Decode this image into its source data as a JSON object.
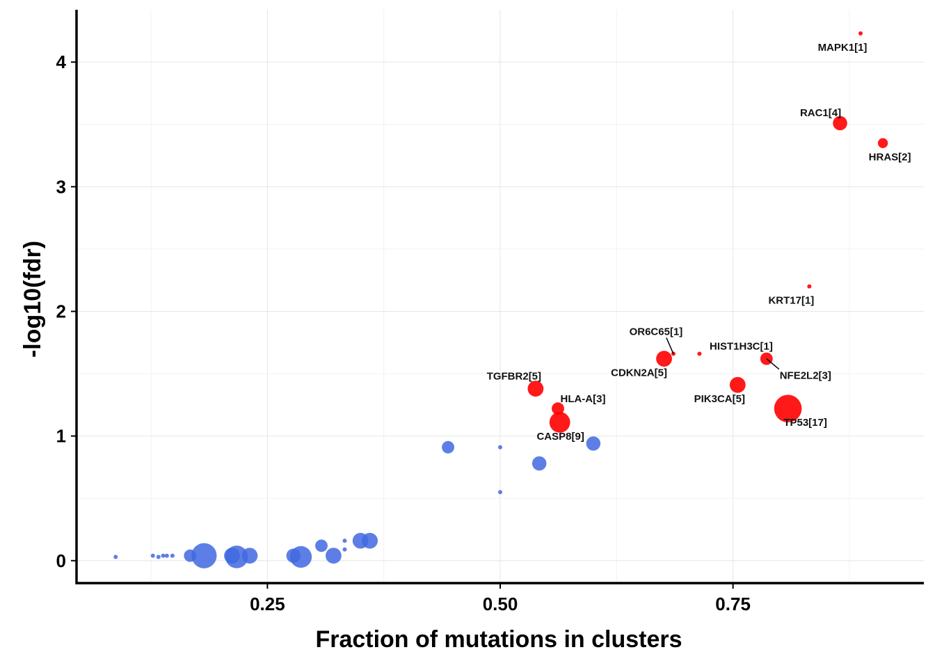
{
  "chart_data": {
    "type": "scatter",
    "title": "",
    "xlabel": "Fraction of mutations in clusters",
    "ylabel": "-log10(fdr)",
    "xlim": [
      0.045,
      0.955
    ],
    "ylim": [
      -0.18,
      4.42
    ],
    "x_ticks": [
      0.25,
      0.5,
      0.75
    ],
    "x_tick_labels": [
      "0.25",
      "0.50",
      "0.75"
    ],
    "y_ticks": [
      0,
      1,
      2,
      3,
      4
    ],
    "y_tick_labels": [
      "0",
      "1",
      "2",
      "3",
      "4"
    ],
    "grid": true,
    "legend": "none",
    "colors": {
      "significant": "#ff0000",
      "nonsignificant": "#4169e1"
    },
    "points": [
      {
        "x": 0.887,
        "y": 4.23,
        "n": 1,
        "sig": true,
        "label": "MAPK1[1]"
      },
      {
        "x": 0.865,
        "y": 3.51,
        "n": 4,
        "sig": true,
        "label": "RAC1[4]"
      },
      {
        "x": 0.911,
        "y": 3.35,
        "n": 2,
        "sig": true,
        "label": "HRAS[2]"
      },
      {
        "x": 0.832,
        "y": 2.2,
        "n": 1,
        "sig": true,
        "label": "KRT17[1]"
      },
      {
        "x": 0.686,
        "y": 1.66,
        "n": 1,
        "sig": true,
        "label": "OR6C65[1]"
      },
      {
        "x": 0.714,
        "y": 1.66,
        "n": 1,
        "sig": true,
        "label": "HIST1H3C[1]"
      },
      {
        "x": 0.676,
        "y": 1.62,
        "n": 5,
        "sig": true,
        "label": "CDKN2A[5]"
      },
      {
        "x": 0.786,
        "y": 1.62,
        "n": 3,
        "sig": true,
        "label": "NFE2L2[3]"
      },
      {
        "x": 0.538,
        "y": 1.38,
        "n": 5,
        "sig": true,
        "label": "TGFBR2[5]"
      },
      {
        "x": 0.755,
        "y": 1.41,
        "n": 5,
        "sig": true,
        "label": "PIK3CA[5]"
      },
      {
        "x": 0.562,
        "y": 1.22,
        "n": 3,
        "sig": true,
        "label": "HLA-A[3]"
      },
      {
        "x": 0.809,
        "y": 1.22,
        "n": 17,
        "sig": true,
        "label": "TP53[17]"
      },
      {
        "x": 0.564,
        "y": 1.11,
        "n": 9,
        "sig": true,
        "label": "CASP8[9]"
      },
      {
        "x": 0.444,
        "y": 0.91,
        "n": 3,
        "sig": false
      },
      {
        "x": 0.5,
        "y": 0.91,
        "n": 1,
        "sig": false
      },
      {
        "x": 0.6,
        "y": 0.94,
        "n": 4,
        "sig": false
      },
      {
        "x": 0.542,
        "y": 0.78,
        "n": 4,
        "sig": false
      },
      {
        "x": 0.5,
        "y": 0.55,
        "n": 1,
        "sig": false
      },
      {
        "x": 0.087,
        "y": 0.03,
        "n": 1,
        "sig": false
      },
      {
        "x": 0.127,
        "y": 0.04,
        "n": 1,
        "sig": false
      },
      {
        "x": 0.133,
        "y": 0.03,
        "n": 1,
        "sig": false
      },
      {
        "x": 0.138,
        "y": 0.04,
        "n": 1,
        "sig": false
      },
      {
        "x": 0.142,
        "y": 0.04,
        "n": 1,
        "sig": false
      },
      {
        "x": 0.148,
        "y": 0.04,
        "n": 1,
        "sig": false
      },
      {
        "x": 0.167,
        "y": 0.04,
        "n": 3,
        "sig": false
      },
      {
        "x": 0.182,
        "y": 0.04,
        "n": 14,
        "sig": false
      },
      {
        "x": 0.212,
        "y": 0.04,
        "n": 5,
        "sig": false
      },
      {
        "x": 0.217,
        "y": 0.03,
        "n": 11,
        "sig": false
      },
      {
        "x": 0.231,
        "y": 0.04,
        "n": 5,
        "sig": false
      },
      {
        "x": 0.278,
        "y": 0.04,
        "n": 4,
        "sig": false
      },
      {
        "x": 0.286,
        "y": 0.03,
        "n": 10,
        "sig": false
      },
      {
        "x": 0.308,
        "y": 0.12,
        "n": 3,
        "sig": false
      },
      {
        "x": 0.321,
        "y": 0.04,
        "n": 5,
        "sig": false
      },
      {
        "x": 0.333,
        "y": 0.09,
        "n": 1,
        "sig": false
      },
      {
        "x": 0.333,
        "y": 0.16,
        "n": 1,
        "sig": false
      },
      {
        "x": 0.35,
        "y": 0.16,
        "n": 5,
        "sig": false
      },
      {
        "x": 0.36,
        "y": 0.16,
        "n": 5,
        "sig": false
      }
    ]
  }
}
